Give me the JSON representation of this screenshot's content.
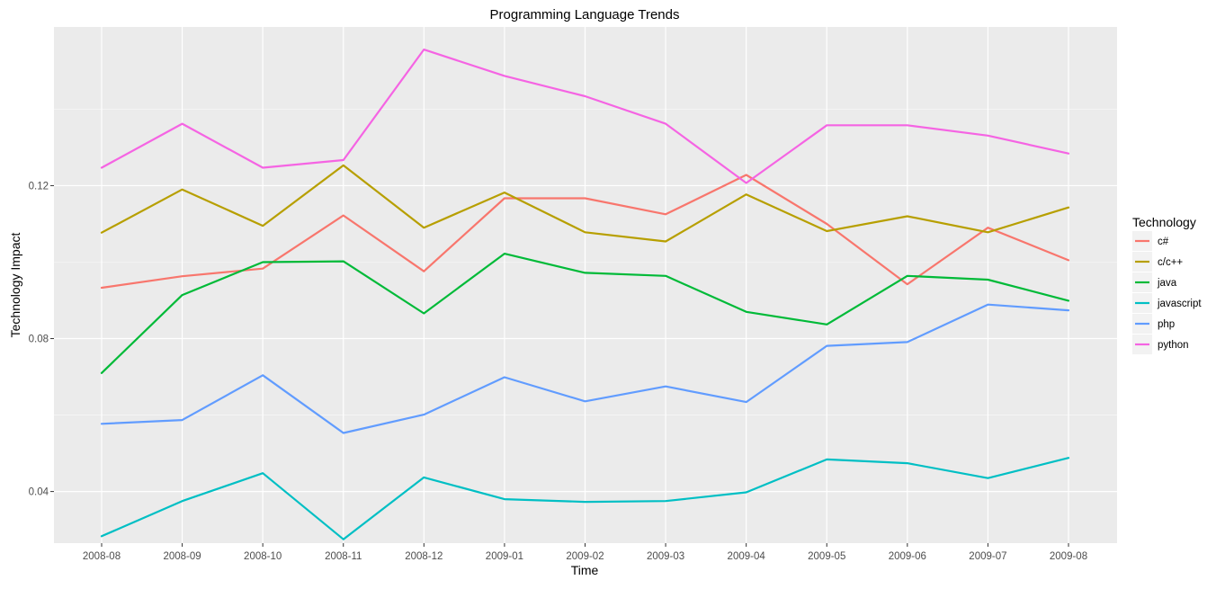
{
  "chart_data": {
    "type": "line",
    "title": "Programming Language Trends",
    "xlabel": "Time",
    "ylabel": "Technology Impact",
    "x": [
      "2008-08",
      "2008-09",
      "2008-10",
      "2008-11",
      "2008-12",
      "2009-01",
      "2009-02",
      "2009-03",
      "2009-04",
      "2009-05",
      "2009-06",
      "2009-07",
      "2009-08"
    ],
    "ylim": [
      0.0265,
      0.1615
    ],
    "yticks": [
      0.04,
      0.08,
      0.12
    ],
    "ytick_labels": [
      "0.04",
      "0.08",
      "0.12"
    ],
    "grid": true,
    "legend": {
      "title": "Technology",
      "position": "right"
    },
    "series": [
      {
        "name": "c#",
        "color": "#F8766D",
        "values": [
          0.0933,
          0.0963,
          0.0983,
          0.1122,
          0.0976,
          0.1167,
          0.1167,
          0.1125,
          0.1228,
          0.11,
          0.0942,
          0.109,
          0.1005
        ]
      },
      {
        "name": "c/c++",
        "color": "#B79F00",
        "values": [
          0.1077,
          0.119,
          0.1095,
          0.1253,
          0.109,
          0.1182,
          0.1078,
          0.1054,
          0.1177,
          0.1081,
          0.112,
          0.1078,
          0.1143
        ]
      },
      {
        "name": "java",
        "color": "#00BA38",
        "values": [
          0.071,
          0.0914,
          0.1,
          0.1002,
          0.0866,
          0.1022,
          0.0972,
          0.0964,
          0.087,
          0.0837,
          0.0964,
          0.0954,
          0.0899
        ]
      },
      {
        "name": "javascript",
        "color": "#00BFC4",
        "values": [
          0.0283,
          0.0375,
          0.0448,
          0.0275,
          0.0437,
          0.038,
          0.0373,
          0.0375,
          0.0398,
          0.0484,
          0.0474,
          0.0435,
          0.0488
        ]
      },
      {
        "name": "php",
        "color": "#619CFF",
        "values": [
          0.0577,
          0.0587,
          0.0704,
          0.0553,
          0.0601,
          0.0699,
          0.0636,
          0.0675,
          0.0634,
          0.0781,
          0.0791,
          0.0889,
          0.0874
        ]
      },
      {
        "name": "python",
        "color": "#F564E3",
        "values": [
          0.1247,
          0.1362,
          0.1247,
          0.1267,
          0.1556,
          0.1487,
          0.1434,
          0.1362,
          0.1207,
          0.1358,
          0.1358,
          0.1331,
          0.1284
        ]
      }
    ]
  }
}
